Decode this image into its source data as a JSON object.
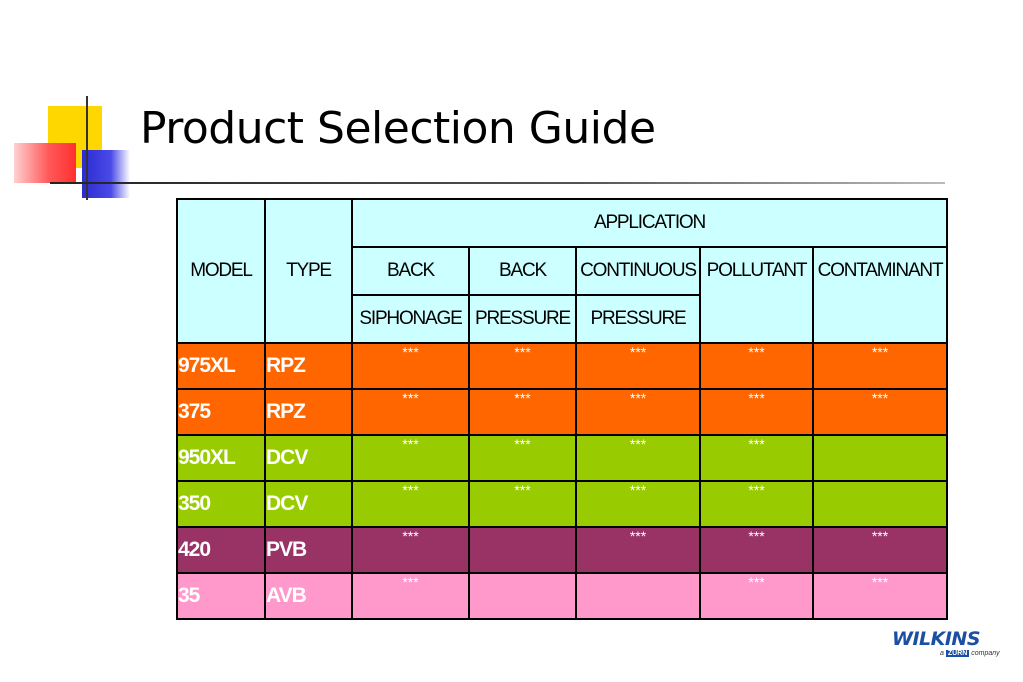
{
  "title": "Product Selection Guide",
  "table": {
    "header": {
      "model": "MODEL",
      "type": "TYPE",
      "application": "APPLICATION",
      "columns": [
        {
          "line1": "BACK",
          "line2": "SIPHONAGE"
        },
        {
          "line1": "BACK",
          "line2": "PRESSURE"
        },
        {
          "line1": "CONTINUOUS",
          "line2": "PRESSURE"
        },
        {
          "line1": "POLLUTANT",
          "line2": ""
        },
        {
          "line1": "CONTAMINANT",
          "line2": ""
        }
      ]
    },
    "rows": [
      {
        "model": "975XL",
        "type": "RPZ",
        "color": "#ff6600",
        "cells": [
          "***",
          "***",
          "***",
          "***",
          "***"
        ]
      },
      {
        "model": "375",
        "type": "RPZ",
        "color": "#ff6600",
        "cells": [
          "***",
          "***",
          "***",
          "***",
          "***"
        ]
      },
      {
        "model": "950XL",
        "type": "DCV",
        "color": "#99cc00",
        "cells": [
          "***",
          "***",
          "***",
          "***",
          ""
        ]
      },
      {
        "model": "350",
        "type": "DCV",
        "color": "#99cc00",
        "cells": [
          "***",
          "***",
          "***",
          "***",
          ""
        ]
      },
      {
        "model": "420",
        "type": "PVB",
        "color": "#993366",
        "cells": [
          "***",
          "",
          "***",
          "***",
          "***"
        ]
      },
      {
        "model": "35",
        "type": "AVB",
        "color": "#ff99cc",
        "cells": [
          "***",
          "",
          "",
          "***",
          "***"
        ]
      }
    ]
  },
  "logo": {
    "name": "WILKINS",
    "sub_pre": "a",
    "sub_brand": "ZURN",
    "sub_post": "company"
  },
  "colors": {
    "header_bg": "#ccffff",
    "rpz": "#ff6600",
    "dcv": "#99cc00",
    "pvb": "#993366",
    "avb": "#ff99cc",
    "logo": "#1a4fa3"
  }
}
